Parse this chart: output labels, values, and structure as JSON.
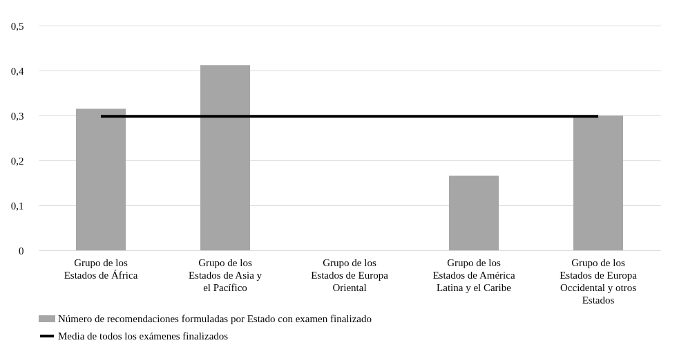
{
  "chart_data": {
    "type": "bar",
    "categories": [
      "Grupo de los Estados de África",
      "Grupo de los Estados de Asia y el Pacífico",
      "Grupo de los Estados de Europa Oriental",
      "Grupo de los Estados de América Latina y el Caribe",
      "Grupo de los Estados de Europa Occidental y otros Estados"
    ],
    "series": [
      {
        "name": "Número de recomendaciones formuladas por Estado con examen finalizado",
        "color": "#a6a6a6",
        "values": [
          0.315,
          0.412,
          0,
          0.166,
          0.3
        ]
      },
      {
        "type": "line",
        "name": "Media de todos los exámenes finalizados",
        "color": "#000000",
        "values": [
          0.298,
          0.298,
          0.298,
          0.298,
          0.298
        ]
      }
    ],
    "ylim": [
      0,
      0.5
    ],
    "yticks": [
      0,
      {
        "value": 0.1,
        "label": "0,1"
      },
      {
        "value": 0.2,
        "label": "0,2"
      },
      {
        "value": 0.3,
        "label": "0,3"
      },
      {
        "value": 0.4,
        "label": "0,4"
      },
      {
        "value": 0.5,
        "label": "0,5"
      }
    ],
    "grid": "y",
    "legend": "bottom"
  }
}
